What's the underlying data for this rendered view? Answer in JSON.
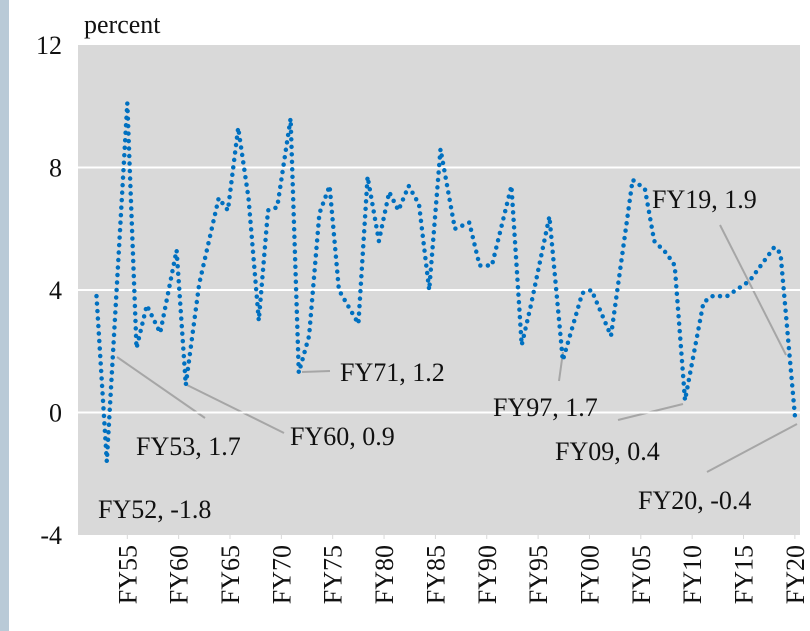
{
  "chart_data": {
    "type": "line",
    "y_label": "percent",
    "x": [
      1952,
      1953.0,
      1955.0,
      1955.9,
      1956.9,
      1958.2,
      1959.8,
      1960.7,
      1962.0,
      1963.9,
      1964.8,
      1965.8,
      1966.8,
      1967.8,
      1968.7,
      1969.6,
      1970.9,
      1971.7,
      1972.7,
      1973.7,
      1974.7,
      1975.6,
      1977.5,
      1978.4,
      1979.5,
      1980.5,
      1981.4,
      1982.4,
      1983.4,
      1984.4,
      1985.5,
      1986.9,
      1988.3,
      1989.3,
      1990.5,
      1992.4,
      1993.4,
      1994.3,
      1996.1,
      1997.4,
      1999.3,
      2000.2,
      2002.1,
      2004.2,
      2005.4,
      2006.3,
      2007.5,
      2008.3,
      2009.3,
      2011.1,
      2012.0,
      2013.4,
      2015.6,
      2018.0,
      2018.6,
      2020.0
    ],
    "series": [
      {
        "color": "#0070c0",
        "values": [
          3.8,
          -1.6,
          10.1,
          2.1,
          3.5,
          2.6,
          5.3,
          0.9,
          4.2,
          7.0,
          6.6,
          9.3,
          7.0,
          3.0,
          6.6,
          6.7,
          9.6,
          1.3,
          2.5,
          6.5,
          7.4,
          4.0,
          2.9,
          7.7,
          5.6,
          7.2,
          6.6,
          7.4,
          6.8,
          4.0,
          8.6,
          6.0,
          6.2,
          4.8,
          4.8,
          7.4,
          2.2,
          3.5,
          6.4,
          1.7,
          3.9,
          4.0,
          2.5,
          7.6,
          7.3,
          5.6,
          5.2,
          4.8,
          0.4,
          3.6,
          3.8,
          3.8,
          4.3,
          5.4,
          5.2,
          -0.1
        ]
      }
    ],
    "xlim": [
      1950.2,
      2020.5
    ],
    "xticks": [
      {
        "value": 1955,
        "label": "FY55"
      },
      {
        "value": 1960,
        "label": "FY60"
      },
      {
        "value": 1965,
        "label": "FY65"
      },
      {
        "value": 1970,
        "label": "FY70"
      },
      {
        "value": 1975,
        "label": "FY75"
      },
      {
        "value": 1980,
        "label": "FY80"
      },
      {
        "value": 1985,
        "label": "FY85"
      },
      {
        "value": 1990,
        "label": "FY90"
      },
      {
        "value": 1995,
        "label": "FY95"
      },
      {
        "value": 2000,
        "label": "FY00"
      },
      {
        "value": 2005,
        "label": "FY05"
      },
      {
        "value": 2010,
        "label": "FY10"
      },
      {
        "value": 2015,
        "label": "FY15"
      },
      {
        "value": 2020,
        "label": "FY20"
      }
    ],
    "ylim": [
      -4,
      12
    ],
    "yticks": [
      -4,
      0,
      4,
      8,
      12
    ],
    "grid": true,
    "annotations": [
      "FY52, -1.8",
      "FY53, 1.7",
      "FY60, 0.9",
      "FY71, 1.2",
      "FY97, 1.7",
      "FY09, 0.4",
      "FY19, 1.9",
      "FY20, -0.4"
    ]
  }
}
